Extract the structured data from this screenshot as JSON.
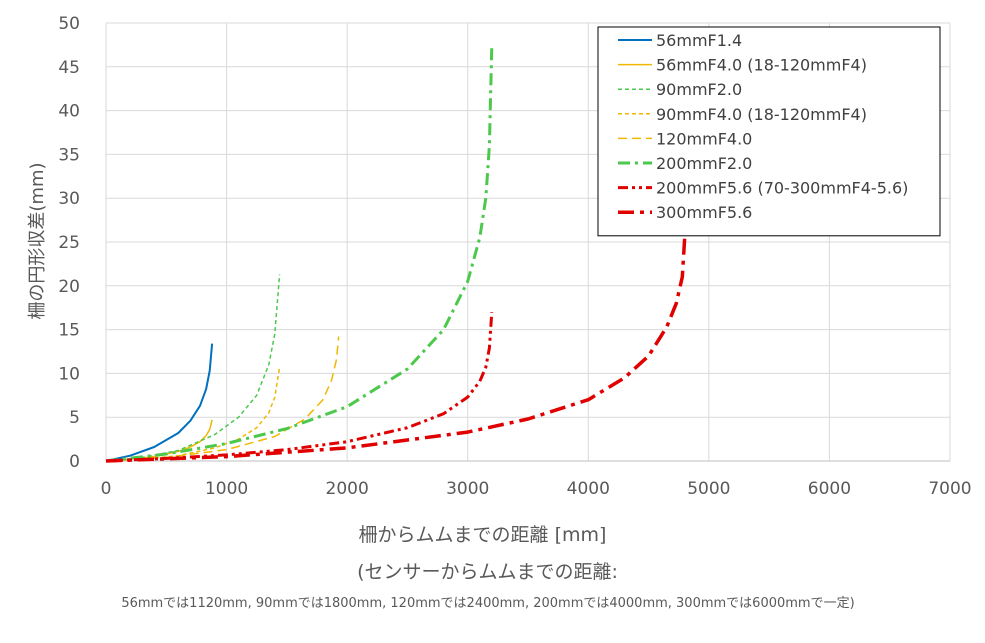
{
  "chart_data": {
    "type": "line",
    "ylabel": "柵の円形収差(mm)",
    "xlabel_lines": [
      "柵からムムまでの距離 [mm]",
      "(センサーからムムまでの距離:",
      "56mmでは1120mm, 90mmでは1800mm, 120mmでは2400mm, 200mmでは4000mm, 300mmでは6000mmで一定)"
    ],
    "xlim": [
      0,
      7000
    ],
    "ylim": [
      0,
      50
    ],
    "x_ticks": [
      "0",
      "1000",
      "2000",
      "3000",
      "4000",
      "5000",
      "6000",
      "7000"
    ],
    "y_ticks": [
      "0",
      "5",
      "10",
      "15",
      "20",
      "25",
      "30",
      "35",
      "40",
      "45",
      "50"
    ],
    "grid": true,
    "legend_position": "top-right",
    "series": [
      {
        "name": "56mmF1.4",
        "color": "#0070C0",
        "dash": "solid",
        "width": 2,
        "x": [
          0,
          200,
          400,
          600,
          700,
          780,
          830,
          860,
          880
        ],
        "y": [
          0,
          0.6,
          1.6,
          3.2,
          4.6,
          6.3,
          8.2,
          10.3,
          13.4
        ]
      },
      {
        "name": "56mmF4.0 (18-120mmF4)",
        "color": "#F0B800",
        "dash": "solid",
        "width": 1.5,
        "x": [
          0,
          200,
          400,
          600,
          700,
          780,
          830,
          860,
          880
        ],
        "y": [
          0,
          0.2,
          0.5,
          1.1,
          1.6,
          2.2,
          2.9,
          3.6,
          4.7
        ]
      },
      {
        "name": "90mmF2.0",
        "color": "#4CC84C",
        "dash": "short-dash",
        "width": 1.5,
        "x": [
          0,
          300,
          600,
          900,
          1100,
          1250,
          1350,
          1400,
          1440
        ],
        "y": [
          0,
          0.4,
          1.2,
          3.0,
          5.0,
          7.5,
          11.0,
          14.5,
          21.3
        ]
      },
      {
        "name": "90mmF4.0 (18-120mmF4)",
        "color": "#F0B800",
        "dash": "short-dash",
        "width": 1.5,
        "x": [
          0,
          300,
          600,
          900,
          1100,
          1250,
          1350,
          1400,
          1440
        ],
        "y": [
          0,
          0.2,
          0.6,
          1.5,
          2.5,
          3.8,
          5.5,
          7.3,
          10.7
        ]
      },
      {
        "name": "120mmF4.0",
        "color": "#F0B800",
        "dash": "long-dash",
        "width": 1.5,
        "x": [
          0,
          500,
          1000,
          1400,
          1650,
          1800,
          1870,
          1910,
          1930
        ],
        "y": [
          0,
          0.4,
          1.3,
          2.8,
          4.8,
          7.0,
          9.2,
          11.5,
          14.2
        ]
      },
      {
        "name": "200mmF2.0",
        "color": "#4CC84C",
        "dash": "dash-dot",
        "width": 3,
        "x": [
          0,
          500,
          1000,
          1500,
          2000,
          2500,
          2800,
          3000,
          3100,
          3150,
          3180,
          3200
        ],
        "y": [
          0,
          0.8,
          2.0,
          3.7,
          6.2,
          10.5,
          15.0,
          20.5,
          25.5,
          30.0,
          36.0,
          47.5
        ]
      },
      {
        "name": "200mmF5.6 (70-300mmF4-5.6)",
        "color": "#E00000",
        "dash": "dash-dot-dot",
        "width": 3,
        "x": [
          0,
          500,
          1000,
          1500,
          2000,
          2500,
          2800,
          3000,
          3100,
          3150,
          3180,
          3200
        ],
        "y": [
          0,
          0.3,
          0.7,
          1.3,
          2.2,
          3.8,
          5.4,
          7.3,
          9.1,
          10.7,
          12.9,
          17.0
        ]
      },
      {
        "name": "300mmF5.6",
        "color": "#E00000",
        "dash": "long-dash-dot",
        "width": 3.5,
        "x": [
          0,
          1000,
          2000,
          3000,
          3500,
          4000,
          4300,
          4500,
          4650,
          4730,
          4780,
          4800
        ],
        "y": [
          0,
          0.5,
          1.5,
          3.3,
          4.8,
          7.0,
          9.5,
          12.0,
          15.3,
          18.0,
          21.0,
          25.5
        ]
      }
    ]
  }
}
